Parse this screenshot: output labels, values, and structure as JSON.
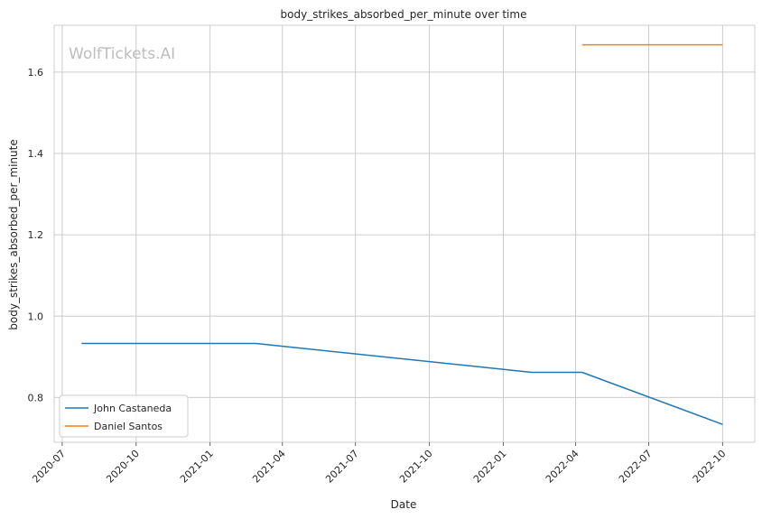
{
  "watermark": "WolfTickets.AI",
  "chart_data": {
    "type": "line",
    "title": "body_strikes_absorbed_per_minute over time",
    "xlabel": "Date",
    "ylabel": "body_strikes_absorbed_per_minute",
    "x_ticks": [
      "2020-07",
      "2020-10",
      "2021-01",
      "2021-04",
      "2021-07",
      "2021-10",
      "2022-01",
      "2022-04",
      "2022-07",
      "2022-10"
    ],
    "y_ticks": [
      "0.8",
      "1.0",
      "1.2",
      "1.4",
      "1.6"
    ],
    "xlim": [
      "2020-06-21",
      "2022-11-10"
    ],
    "ylim": [
      0.69,
      1.715
    ],
    "grid": true,
    "legend_position": "lower-left",
    "series": [
      {
        "name": "John Castaneda",
        "color": "#1f77b4",
        "points": [
          {
            "x": "2020-07-25",
            "y": 0.933
          },
          {
            "x": "2021-02-27",
            "y": 0.933
          },
          {
            "x": "2022-02-05",
            "y": 0.862
          },
          {
            "x": "2022-04-09",
            "y": 0.862
          },
          {
            "x": "2022-10-01",
            "y": 0.734
          }
        ]
      },
      {
        "name": "Daniel Santos",
        "color": "#ff7f0e",
        "points": [
          {
            "x": "2022-04-09",
            "y": 1.667
          },
          {
            "x": "2022-10-01",
            "y": 1.667
          }
        ]
      }
    ]
  }
}
